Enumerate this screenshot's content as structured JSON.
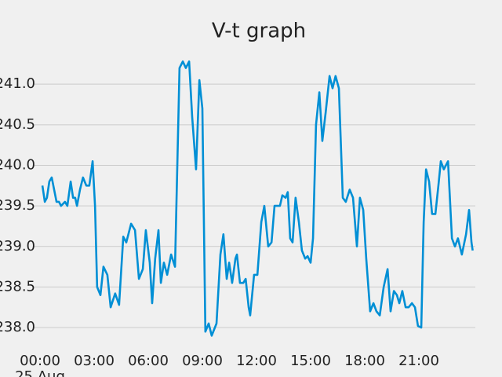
{
  "chart_data": {
    "type": "line",
    "title": "V-t graph",
    "x_sublabel": "25 Aug",
    "x": [
      "00:08",
      "00:16",
      "00:23",
      "00:31",
      "00:39",
      "00:47",
      "00:55",
      "01:03",
      "01:10",
      "01:23",
      "01:31",
      "01:42",
      "01:50",
      "01:57",
      "02:03",
      "02:13",
      "02:23",
      "02:34",
      "02:44",
      "02:55",
      "03:03",
      "03:10",
      "03:21",
      "03:31",
      "03:44",
      "03:55",
      "04:10",
      "04:23",
      "04:37",
      "04:47",
      "05:03",
      "05:16",
      "05:29",
      "05:42",
      "05:52",
      "06:05",
      "06:13",
      "06:23",
      "06:34",
      "06:42",
      "06:52",
      "07:03",
      "07:16",
      "07:29",
      "07:44",
      "07:55",
      "08:05",
      "08:16",
      "08:26",
      "08:39",
      "08:50",
      "09:00",
      "09:10",
      "09:21",
      "09:31",
      "09:47",
      "10:00",
      "10:10",
      "10:21",
      "10:29",
      "10:39",
      "10:50",
      "10:55",
      "11:05",
      "11:16",
      "11:24",
      "11:34",
      "11:39",
      "11:52",
      "12:03",
      "12:16",
      "12:26",
      "12:39",
      "12:50",
      "13:00",
      "13:10",
      "13:18",
      "13:26",
      "13:37",
      "13:44",
      "13:52",
      "14:00",
      "14:10",
      "14:21",
      "14:31",
      "14:42",
      "14:50",
      "15:00",
      "15:08",
      "15:18",
      "15:29",
      "15:39",
      "15:50",
      "16:03",
      "16:13",
      "16:23",
      "16:34",
      "16:47",
      "16:57",
      "17:10",
      "17:21",
      "17:34",
      "17:44",
      "17:55",
      "18:05",
      "18:18",
      "18:29",
      "18:39",
      "18:50",
      "19:03",
      "19:16",
      "19:26",
      "19:37",
      "19:47",
      "19:55",
      "20:05",
      "20:16",
      "20:26",
      "20:37",
      "20:47",
      "20:57",
      "21:08",
      "21:16",
      "21:24",
      "21:34",
      "21:44",
      "21:55",
      "22:05",
      "22:13",
      "22:23",
      "22:37",
      "22:50",
      "23:00",
      "23:10",
      "23:23",
      "23:37",
      "23:47",
      "23:55",
      "23:59"
    ],
    "series": [
      {
        "color": "#008fd5",
        "values": [
          239.75,
          239.55,
          239.6,
          239.8,
          239.85,
          239.7,
          239.55,
          239.55,
          239.5,
          239.55,
          239.5,
          239.8,
          239.6,
          239.6,
          239.5,
          239.7,
          239.85,
          239.75,
          239.75,
          240.05,
          239.5,
          238.5,
          238.4,
          238.75,
          238.65,
          238.25,
          238.42,
          238.28,
          239.12,
          239.05,
          239.28,
          239.2,
          238.6,
          238.72,
          239.2,
          238.8,
          238.3,
          238.85,
          239.2,
          238.55,
          238.8,
          238.65,
          238.9,
          238.75,
          241.2,
          241.28,
          241.2,
          241.28,
          240.6,
          239.95,
          241.05,
          240.7,
          237.95,
          238.05,
          237.9,
          238.05,
          238.9,
          239.15,
          238.6,
          238.8,
          238.55,
          238.85,
          238.9,
          238.55,
          238.55,
          238.6,
          238.25,
          238.15,
          238.65,
          238.65,
          239.3,
          239.5,
          239.0,
          239.05,
          239.5,
          239.5,
          239.5,
          239.63,
          239.6,
          239.67,
          239.1,
          239.05,
          239.6,
          239.3,
          238.95,
          238.85,
          238.88,
          238.8,
          239.1,
          240.5,
          240.9,
          240.3,
          240.65,
          241.1,
          240.95,
          241.1,
          240.95,
          239.6,
          239.55,
          239.7,
          239.6,
          239.0,
          239.6,
          239.45,
          238.85,
          238.2,
          238.3,
          238.2,
          238.15,
          238.5,
          238.72,
          238.2,
          238.45,
          238.4,
          238.3,
          238.45,
          238.25,
          238.25,
          238.3,
          238.25,
          238.02,
          238.0,
          239.3,
          239.95,
          239.8,
          239.4,
          239.4,
          239.75,
          240.05,
          239.95,
          240.05,
          239.1,
          239.0,
          239.1,
          238.9,
          239.15,
          239.45,
          239.05,
          238.95
        ]
      }
    ],
    "xlim": [
      "00:00",
      "24:00"
    ],
    "xticks": [
      "00:00",
      "03:00",
      "06:00",
      "09:00",
      "12:00",
      "15:00",
      "18:00",
      "21:00"
    ],
    "ylim": [
      237.86,
      241.36
    ],
    "yticks": [
      {
        "value": 238,
        "label": "238.0"
      },
      238.5,
      {
        "value": 239,
        "label": "239.0"
      },
      239.5,
      {
        "value": 240,
        "label": "240.0"
      },
      240.5,
      {
        "value": 241,
        "label": "241.0"
      }
    ],
    "grid": "y"
  }
}
